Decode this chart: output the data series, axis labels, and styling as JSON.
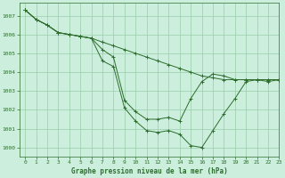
{
  "title": "Graphe pression niveau de la mer (hPa)",
  "background_color": "#cceedd",
  "grid_color": "#99ccaa",
  "line_color": "#2d6e2d",
  "xlim": [
    -0.5,
    23
  ],
  "ylim": [
    999.5,
    1007.7
  ],
  "yticks": [
    1000,
    1001,
    1002,
    1003,
    1004,
    1005,
    1006,
    1007
  ],
  "xticks": [
    0,
    1,
    2,
    3,
    4,
    5,
    6,
    7,
    8,
    9,
    10,
    11,
    12,
    13,
    14,
    15,
    16,
    17,
    18,
    19,
    20,
    21,
    22,
    23
  ],
  "series1": [
    [
      0,
      1007.3
    ],
    [
      1,
      1006.8
    ],
    [
      2,
      1006.5
    ],
    [
      3,
      1006.1
    ],
    [
      4,
      1006.0
    ],
    [
      5,
      1005.9
    ],
    [
      6,
      1005.8
    ],
    [
      7,
      1004.6
    ],
    [
      8,
      1004.3
    ],
    [
      9,
      1002.1
    ],
    [
      10,
      1001.4
    ],
    [
      11,
      1000.9
    ],
    [
      12,
      1000.8
    ],
    [
      13,
      1000.9
    ],
    [
      14,
      1000.7
    ],
    [
      15,
      1000.1
    ],
    [
      16,
      1000.0
    ],
    [
      17,
      1000.9
    ],
    [
      18,
      1001.8
    ],
    [
      19,
      1002.6
    ],
    [
      20,
      1003.5
    ],
    [
      21,
      1003.6
    ],
    [
      22,
      1003.5
    ],
    [
      23,
      1003.6
    ]
  ],
  "series2": [
    [
      0,
      1007.3
    ],
    [
      1,
      1006.8
    ],
    [
      2,
      1006.5
    ],
    [
      3,
      1006.1
    ],
    [
      4,
      1006.0
    ],
    [
      5,
      1005.9
    ],
    [
      6,
      1005.8
    ],
    [
      7,
      1005.6
    ],
    [
      8,
      1005.4
    ],
    [
      9,
      1005.2
    ],
    [
      10,
      1005.0
    ],
    [
      11,
      1004.8
    ],
    [
      12,
      1004.6
    ],
    [
      13,
      1004.4
    ],
    [
      14,
      1004.2
    ],
    [
      15,
      1004.0
    ],
    [
      16,
      1003.8
    ],
    [
      17,
      1003.7
    ],
    [
      18,
      1003.6
    ],
    [
      19,
      1003.6
    ],
    [
      20,
      1003.6
    ],
    [
      21,
      1003.6
    ],
    [
      22,
      1003.6
    ],
    [
      23,
      1003.6
    ]
  ],
  "series3": [
    [
      0,
      1007.3
    ],
    [
      1,
      1006.8
    ],
    [
      2,
      1006.5
    ],
    [
      3,
      1006.1
    ],
    [
      4,
      1006.0
    ],
    [
      5,
      1005.9
    ],
    [
      6,
      1005.8
    ],
    [
      7,
      1005.2
    ],
    [
      8,
      1004.8
    ],
    [
      9,
      1002.5
    ],
    [
      10,
      1001.9
    ],
    [
      11,
      1001.5
    ],
    [
      12,
      1001.5
    ],
    [
      13,
      1001.6
    ],
    [
      14,
      1001.4
    ],
    [
      15,
      1002.6
    ],
    [
      16,
      1003.5
    ],
    [
      17,
      1003.9
    ],
    [
      18,
      1003.8
    ],
    [
      19,
      1003.6
    ],
    [
      20,
      1003.6
    ],
    [
      21,
      1003.6
    ],
    [
      22,
      1003.6
    ],
    [
      23,
      1003.6
    ]
  ]
}
